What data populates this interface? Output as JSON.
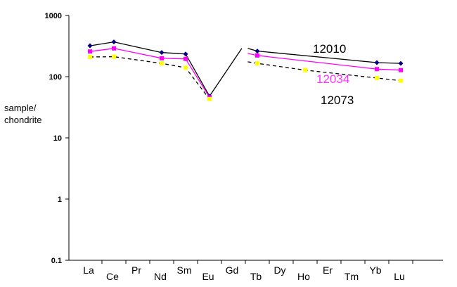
{
  "chart_data": {
    "type": "line",
    "scale": "log",
    "ylim": [
      0.1,
      1000
    ],
    "yticks": [
      "0.1",
      "1",
      "10",
      "100",
      "1000"
    ],
    "ylabel": [
      "sample/",
      "chondrite"
    ],
    "categories": [
      "La",
      "Ce",
      "Pr",
      "Nd",
      "Sm",
      "Eu",
      "Gd",
      "Tb",
      "Dy",
      "Ho",
      "Er",
      "Tm",
      "Yb",
      "Lu"
    ],
    "grid": false,
    "series": [
      {
        "name": "12010",
        "color": "#000000",
        "line": "solid",
        "marker": "diamond",
        "marker_color": "#000080",
        "label_color": "#000000",
        "points": [
          {
            "x": "La",
            "y": 320,
            "marker": true
          },
          {
            "x": "Ce",
            "y": 370,
            "marker": true
          },
          {
            "x": "Nd",
            "y": 248,
            "marker": true
          },
          {
            "x": "Sm",
            "y": 235,
            "marker": true
          },
          {
            "x": "Eu",
            "y": 48,
            "marker": true
          },
          {
            "x": 6.6,
            "y": 290,
            "marker": false
          },
          {
            "x": "Tb",
            "y": 262,
            "marker": true
          },
          {
            "x": "Yb",
            "y": 170,
            "marker": true
          },
          {
            "x": "Lu",
            "y": 165,
            "marker": true
          }
        ],
        "extra_segments": [
          [
            {
              "x": "Eu",
              "y": 48
            },
            {
              "x": 6.35,
              "y": 290
            }
          ]
        ]
      },
      {
        "name": "12034",
        "color": "#ff00ff",
        "line": "solid",
        "marker": "square",
        "marker_color": "#ff00ff",
        "label_color": "#ff33ff",
        "points": [
          {
            "x": "La",
            "y": 258,
            "marker": true
          },
          {
            "x": "Ce",
            "y": 290,
            "marker": true
          },
          {
            "x": "Nd",
            "y": 200,
            "marker": true
          },
          {
            "x": "Sm",
            "y": 195,
            "marker": true
          },
          {
            "x": "Eu",
            "y": 46,
            "marker": true
          },
          {
            "x": 6.6,
            "y": 240,
            "marker": false
          },
          {
            "x": "Tb",
            "y": 222,
            "marker": true
          },
          {
            "x": "Yb",
            "y": 133,
            "marker": true
          },
          {
            "x": "Lu",
            "y": 128,
            "marker": true
          }
        ]
      },
      {
        "name": "12073",
        "color": "#000000",
        "line": "dashed",
        "marker": "square",
        "marker_color": "#ffff00",
        "label_color": "#000000",
        "points": [
          {
            "x": "La",
            "y": 210,
            "marker": true
          },
          {
            "x": "Ce",
            "y": 212,
            "marker": true
          },
          {
            "x": "Nd",
            "y": 165,
            "marker": true
          },
          {
            "x": "Sm",
            "y": 140,
            "marker": true
          },
          {
            "x": "Eu",
            "y": 43,
            "marker": true
          },
          {
            "x": 6.6,
            "y": 175,
            "marker": false
          },
          {
            "x": "Tb",
            "y": 165,
            "marker": true
          },
          {
            "x": "Ho",
            "y": 128,
            "marker": true
          },
          {
            "x": "Yb",
            "y": 95,
            "marker": true
          },
          {
            "x": "Lu",
            "y": 86,
            "marker": true
          }
        ]
      }
    ]
  }
}
